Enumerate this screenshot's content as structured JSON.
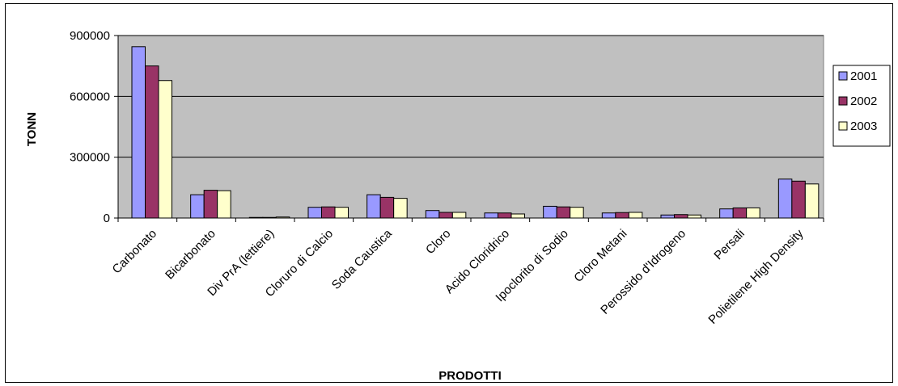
{
  "chart_data": {
    "type": "bar",
    "title": "",
    "xlabel": "PRODOTTI",
    "ylabel": "TONN",
    "ylim": [
      0,
      900000
    ],
    "yticks": [
      0,
      300000,
      600000,
      900000
    ],
    "ytick_labels": [
      "0",
      "300000",
      "600000",
      "900000"
    ],
    "grid": true,
    "legend_position": "right",
    "categories": [
      "Carbonato",
      "Bicarbonato",
      "Div PrA (lettiere)",
      "Cloruro di Calcio",
      "Soda Caustica",
      "Cloro",
      "Acido Cloridrico",
      "Ipoclorito di Sodio",
      "Cloro Metani",
      "Perossido d'Idrogeno",
      "Persali",
      "Polietilene High Density"
    ],
    "series": [
      {
        "name": "2001",
        "color": "#9999ff",
        "values": [
          845000,
          115000,
          3000,
          53000,
          115000,
          37000,
          25000,
          58000,
          25000,
          15000,
          45000,
          192000
        ]
      },
      {
        "name": "2002",
        "color": "#993366",
        "values": [
          750000,
          137000,
          3000,
          55000,
          102000,
          28000,
          25000,
          55000,
          27000,
          17000,
          50000,
          182000
        ]
      },
      {
        "name": "2003",
        "color": "#ffffcc",
        "values": [
          678000,
          135000,
          5000,
          53000,
          97000,
          28000,
          20000,
          53000,
          28000,
          15000,
          50000,
          168000
        ]
      }
    ],
    "plot_background": "#c0c0c0"
  }
}
